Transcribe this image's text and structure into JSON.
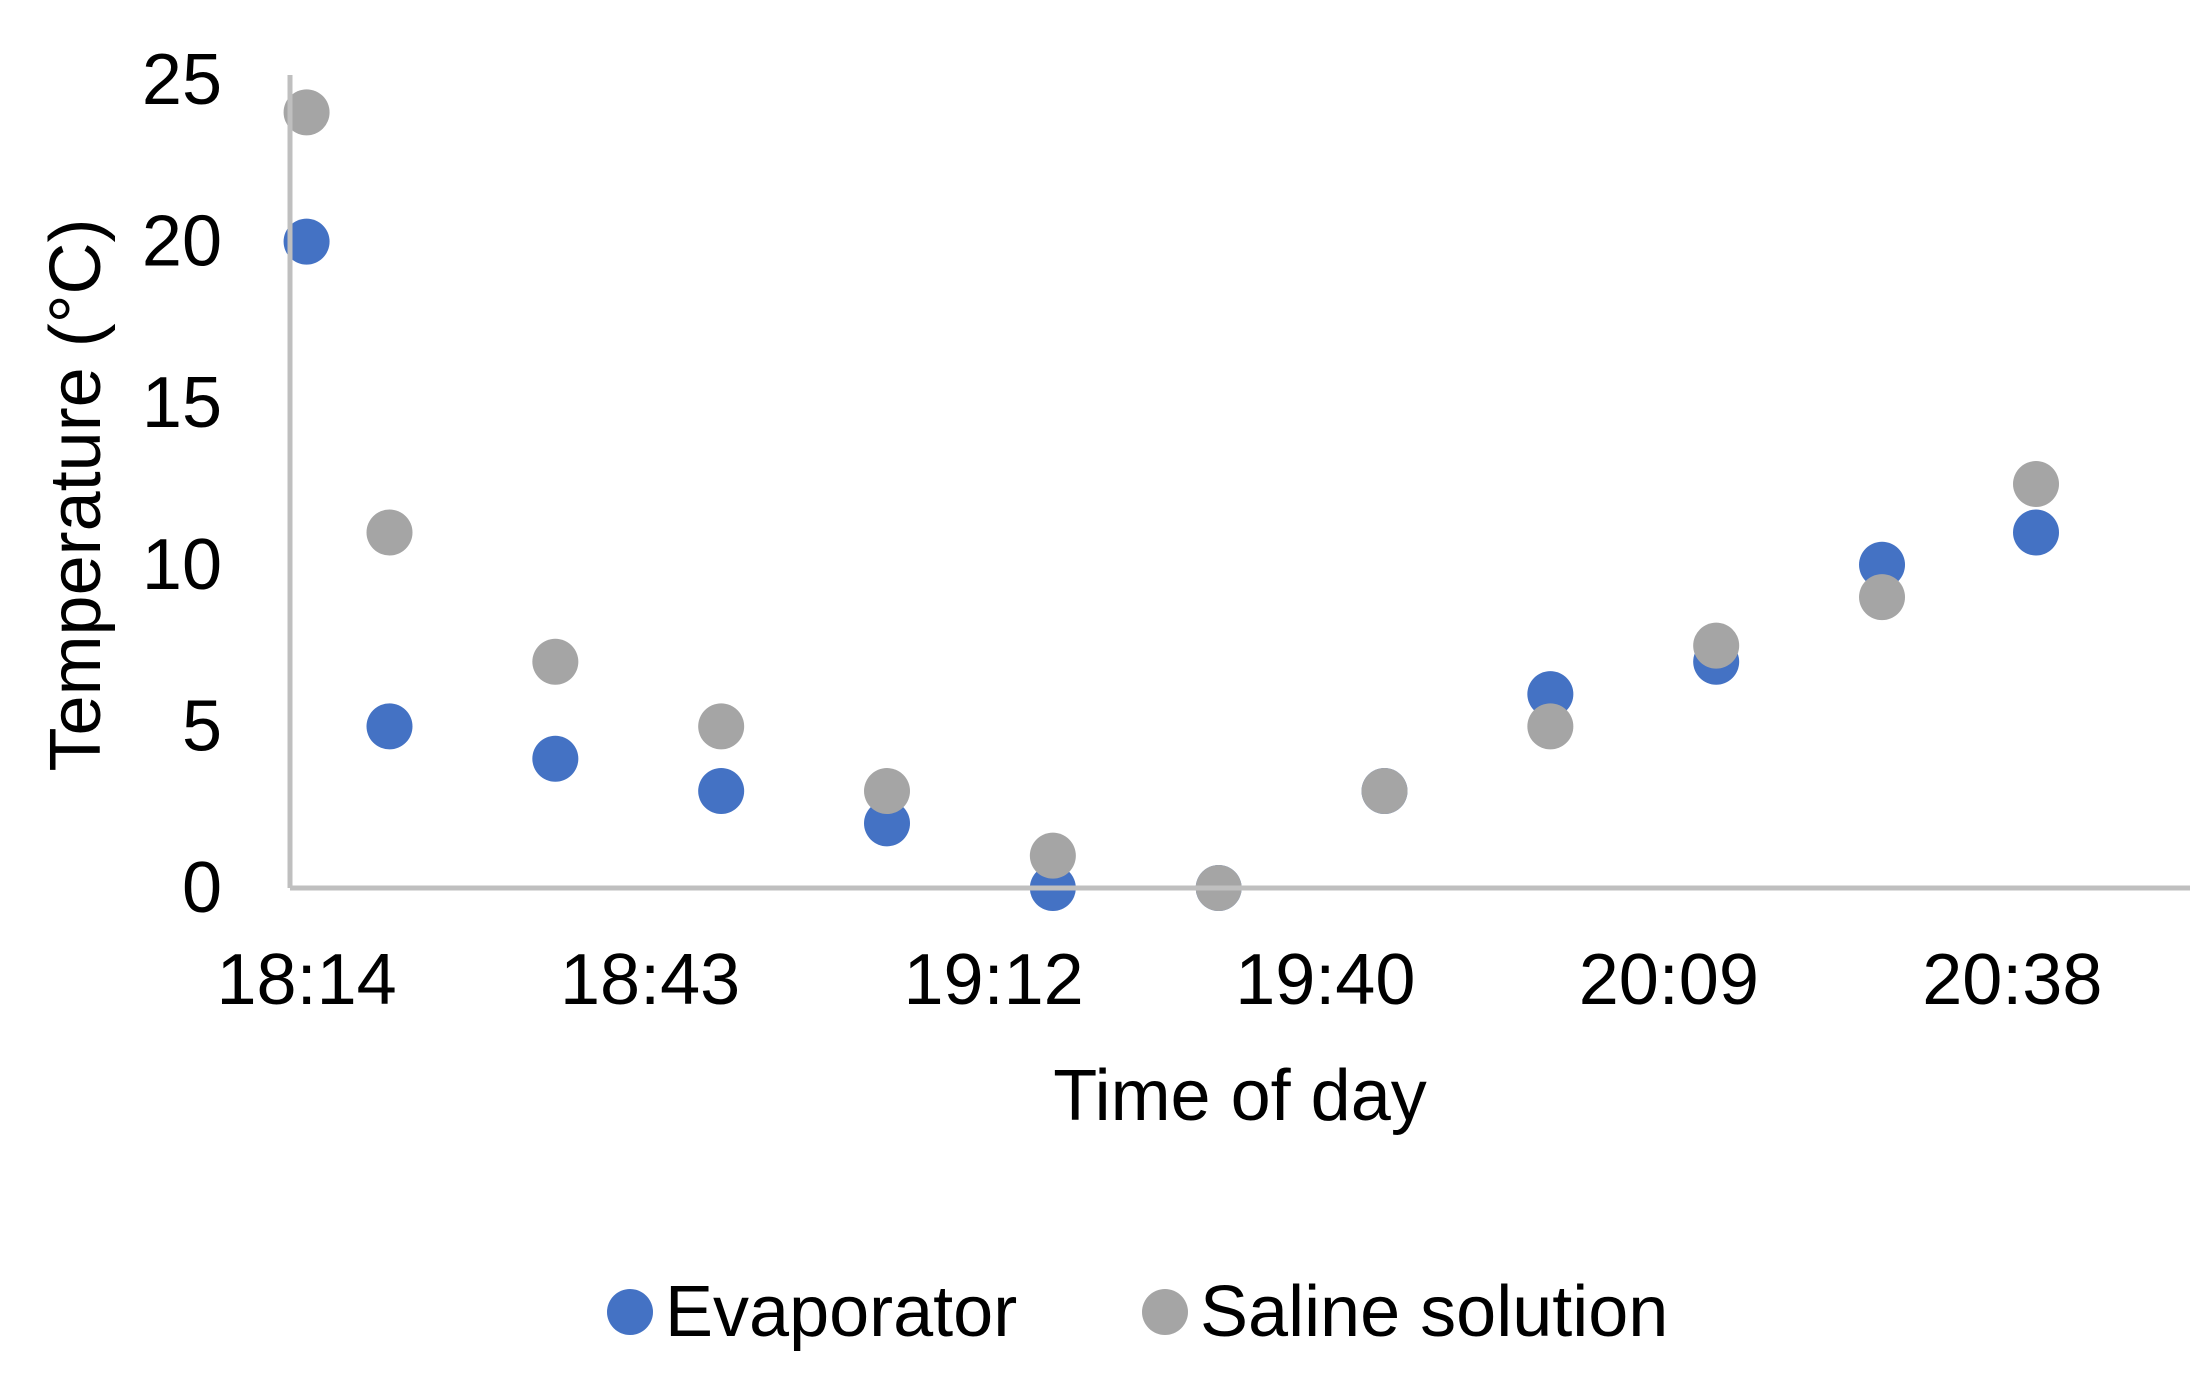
{
  "chart_data": {
    "type": "scatter",
    "title": "",
    "xlabel": "Time of day",
    "ylabel": "Temperature (°C)",
    "xlim": [
      "18:14",
      "20:53"
    ],
    "ylim": [
      0,
      25
    ],
    "x_ticks": [
      "18:14",
      "18:43",
      "19:12",
      "19:40",
      "20:09",
      "20:38"
    ],
    "y_ticks": [
      "0",
      "5",
      "10",
      "15",
      "20",
      "25"
    ],
    "grid": false,
    "legend_position": "bottom",
    "series": [
      {
        "name": "Evaporator",
        "color": "#4472C4",
        "points": [
          {
            "x": "18:14",
            "y": 20
          },
          {
            "x": "18:21",
            "y": 5
          },
          {
            "x": "18:35",
            "y": 4
          },
          {
            "x": "18:49",
            "y": 3
          },
          {
            "x": "19:03",
            "y": 2
          },
          {
            "x": "19:17",
            "y": 0
          },
          {
            "x": "19:31",
            "y": 0
          },
          {
            "x": "19:45",
            "y": 3
          },
          {
            "x": "19:59",
            "y": 6
          },
          {
            "x": "20:13",
            "y": 7
          },
          {
            "x": "20:27",
            "y": 10
          },
          {
            "x": "20:40",
            "y": 11
          }
        ]
      },
      {
        "name": "Saline solution",
        "color": "#A5A5A5",
        "points": [
          {
            "x": "18:14",
            "y": 24
          },
          {
            "x": "18:21",
            "y": 11
          },
          {
            "x": "18:35",
            "y": 7
          },
          {
            "x": "18:49",
            "y": 5
          },
          {
            "x": "19:03",
            "y": 3
          },
          {
            "x": "19:17",
            "y": 1
          },
          {
            "x": "19:31",
            "y": 0
          },
          {
            "x": "19:45",
            "y": 3
          },
          {
            "x": "19:59",
            "y": 5
          },
          {
            "x": "20:13",
            "y": 7.5
          },
          {
            "x": "20:27",
            "y": 9
          },
          {
            "x": "20:40",
            "y": 12.5
          }
        ]
      }
    ]
  }
}
